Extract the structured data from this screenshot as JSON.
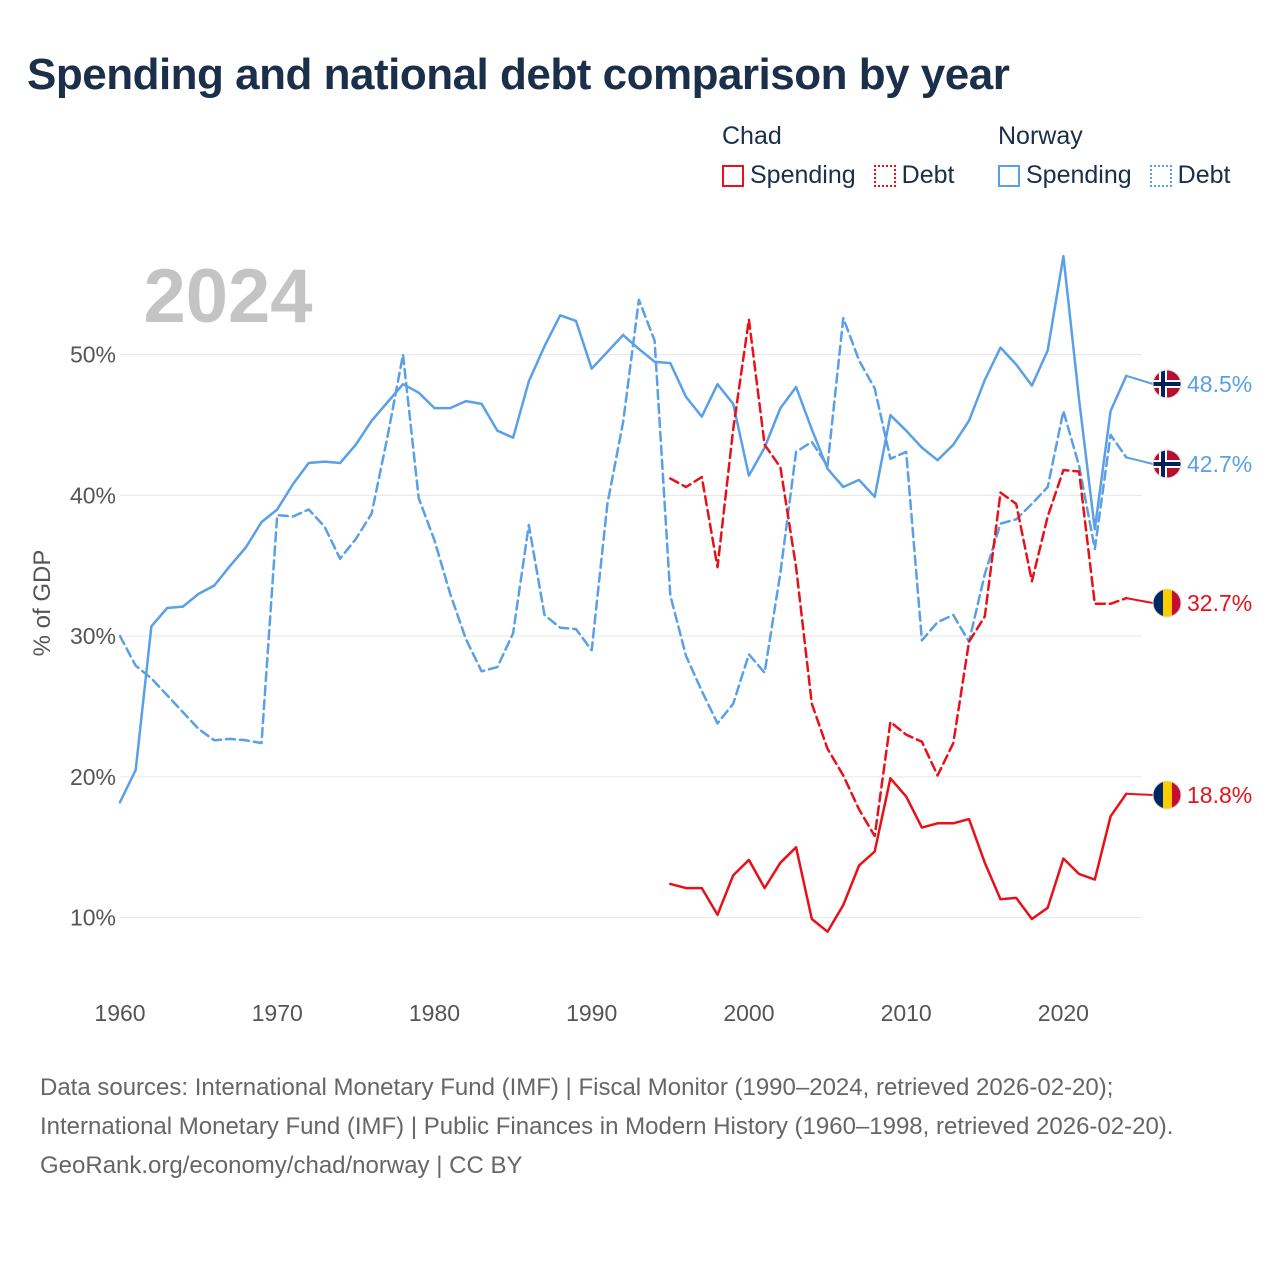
{
  "title": "Spending and national debt comparison by year",
  "year_watermark": "2024",
  "legend": {
    "groups": [
      {
        "name": "Chad",
        "spending_label": "Spending",
        "debt_label": "Debt",
        "color": "#e8111a"
      },
      {
        "name": "Norway",
        "spending_label": "Spending",
        "debt_label": "Debt",
        "color": "#5aa0e6"
      }
    ]
  },
  "footer": {
    "sources": "Data sources: International Monetary Fund (IMF) | Fiscal Monitor (1990–2024, retrieved 2026-02-20); International Monetary Fund (IMF) | Public Finances in Modern History (1960–1998, retrieved 2026-02-20).",
    "credit": "GeoRank.org/economy/chad/norway | CC BY"
  },
  "chart_data": {
    "type": "line",
    "title": "Spending and national debt comparison by year",
    "ylabel": "% of GDP",
    "xlabel": "",
    "xlim": [
      1960,
      2025
    ],
    "ylim": [
      5,
      59
    ],
    "x_ticks": [
      1960,
      1970,
      1980,
      1990,
      2000,
      2010,
      2020
    ],
    "y_ticks": [
      10,
      20,
      30,
      40,
      50
    ],
    "y_tick_suffix": "%",
    "grid": "horizontal",
    "end_labels": [
      {
        "series": "Norway Spending",
        "label": "48.5%",
        "value": 48.5,
        "flag": "norway",
        "color": "#5aa0e6"
      },
      {
        "series": "Norway Debt",
        "label": "42.7%",
        "value": 42.7,
        "flag": "norway",
        "color": "#5aa0e6"
      },
      {
        "series": "Chad Debt",
        "label": "32.7%",
        "value": 32.7,
        "flag": "chad",
        "color": "#e8111a"
      },
      {
        "series": "Chad Spending",
        "label": "18.8%",
        "value": 18.8,
        "flag": "chad",
        "color": "#e8111a"
      }
    ],
    "series": [
      {
        "name": "Norway Spending",
        "country": "Norway",
        "kind": "spending",
        "color": "#5aa0e6",
        "dashed": false,
        "start_year": 1960,
        "values": [
          18.2,
          20.5,
          30.7,
          32.0,
          32.1,
          33.0,
          33.6,
          35.0,
          36.3,
          38.1,
          39.0,
          40.8,
          42.3,
          42.4,
          42.3,
          43.6,
          45.3,
          46.6,
          47.9,
          47.3,
          46.2,
          46.2,
          46.7,
          46.5,
          44.6,
          44.1,
          48.1,
          50.6,
          52.8,
          52.4,
          49.0,
          50.2,
          51.4,
          50.4,
          49.5,
          49.4,
          47.0,
          45.6,
          47.9,
          46.5,
          41.4,
          43.4,
          46.2,
          47.7,
          44.7,
          41.9,
          40.6,
          41.1,
          39.9,
          45.7,
          44.6,
          43.4,
          42.5,
          43.6,
          45.3,
          48.2,
          50.5,
          49.3,
          47.8,
          50.3,
          57.0,
          46.8,
          37.6,
          46.0,
          48.5
        ]
      },
      {
        "name": "Norway Debt",
        "country": "Norway",
        "kind": "debt",
        "color": "#5aa0e6",
        "dashed": true,
        "start_year": 1960,
        "values": [
          30.0,
          27.9,
          27.0,
          25.8,
          24.6,
          23.4,
          22.6,
          22.7,
          22.6,
          22.4,
          38.6,
          38.5,
          39.0,
          37.8,
          35.5,
          36.9,
          38.7,
          44.1,
          50.0,
          39.8,
          36.8,
          33.0,
          29.8,
          27.5,
          27.8,
          30.2,
          37.9,
          31.5,
          30.6,
          30.5,
          29.0,
          39.4,
          45.2,
          53.9,
          51.0,
          32.9,
          28.6,
          26.1,
          23.8,
          25.2,
          28.7,
          27.4,
          34.5,
          43.1,
          43.8,
          42.1,
          52.6,
          49.6,
          47.6,
          42.6,
          43.1,
          29.7,
          31.0,
          31.5,
          29.6,
          34.4,
          38.0,
          38.3,
          39.4,
          40.6,
          46.0,
          42.1,
          36.2,
          44.3,
          42.7
        ]
      },
      {
        "name": "Chad Debt",
        "country": "Chad",
        "kind": "debt",
        "color": "#e8111a",
        "dashed": true,
        "start_year": 1995,
        "values": [
          41.2,
          40.6,
          41.3,
          34.9,
          44.7,
          52.5,
          43.6,
          42.0,
          34.9,
          25.2,
          22.0,
          20.1,
          17.7,
          15.8,
          23.9,
          23.0,
          22.5,
          20.1,
          22.4,
          29.6,
          31.4,
          40.2,
          39.4,
          33.9,
          38.5,
          41.8,
          41.7,
          32.3,
          32.3,
          32.7
        ]
      },
      {
        "name": "Chad Spending",
        "country": "Chad",
        "kind": "spending",
        "color": "#e8111a",
        "dashed": false,
        "start_year": 1995,
        "values": [
          12.4,
          12.1,
          12.1,
          10.2,
          13.0,
          14.1,
          12.1,
          13.9,
          15.0,
          9.9,
          9.0,
          10.9,
          13.7,
          14.7,
          19.9,
          18.6,
          16.4,
          16.7,
          16.7,
          17.0,
          13.9,
          11.3,
          11.4,
          9.9,
          10.7,
          14.2,
          13.1,
          12.7,
          17.2,
          18.8
        ]
      }
    ]
  }
}
